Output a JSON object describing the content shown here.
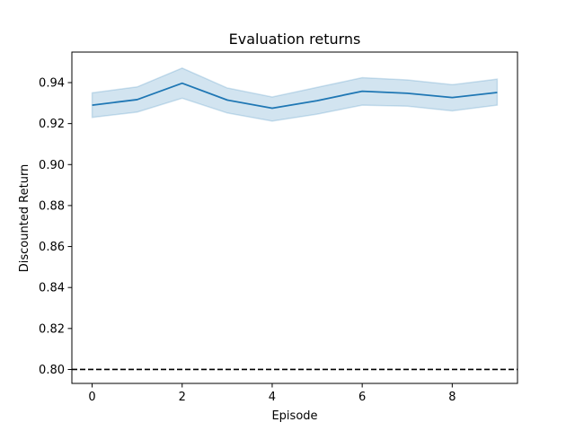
{
  "chart_data": {
    "type": "line",
    "title": "Evaluation returns",
    "xlabel": "Episode",
    "ylabel": "Discounted Return",
    "xlim": [
      -0.45,
      9.45
    ],
    "ylim": [
      0.7932,
      0.9549
    ],
    "xticks": [
      0,
      2,
      4,
      6,
      8
    ],
    "xtick_labels": [
      "0",
      "2",
      "4",
      "6",
      "8"
    ],
    "yticks": [
      0.8,
      0.82,
      0.84,
      0.86,
      0.88,
      0.9,
      0.92,
      0.94
    ],
    "ytick_labels": [
      "0.80",
      "0.82",
      "0.84",
      "0.86",
      "0.88",
      "0.90",
      "0.92",
      "0.94"
    ],
    "grid": false,
    "colors": {
      "line": "#1f77b4",
      "band": "#1f77b4",
      "reference": "#000000"
    },
    "series": [
      {
        "x": [
          0,
          1,
          2,
          3,
          4,
          5,
          6,
          7,
          8,
          9
        ],
        "values": [
          0.929,
          0.9317,
          0.9397,
          0.9315,
          0.9275,
          0.9312,
          0.9358,
          0.9348,
          0.9327,
          0.9352
        ],
        "lower": [
          0.923,
          0.9256,
          0.9324,
          0.9252,
          0.9212,
          0.9246,
          0.929,
          0.9285,
          0.9262,
          0.929
        ],
        "upper": [
          0.935,
          0.9379,
          0.9471,
          0.9374,
          0.933,
          0.9377,
          0.9424,
          0.9413,
          0.939,
          0.9417
        ]
      }
    ],
    "reference_line": {
      "y": 0.8,
      "style": "dashed"
    }
  }
}
